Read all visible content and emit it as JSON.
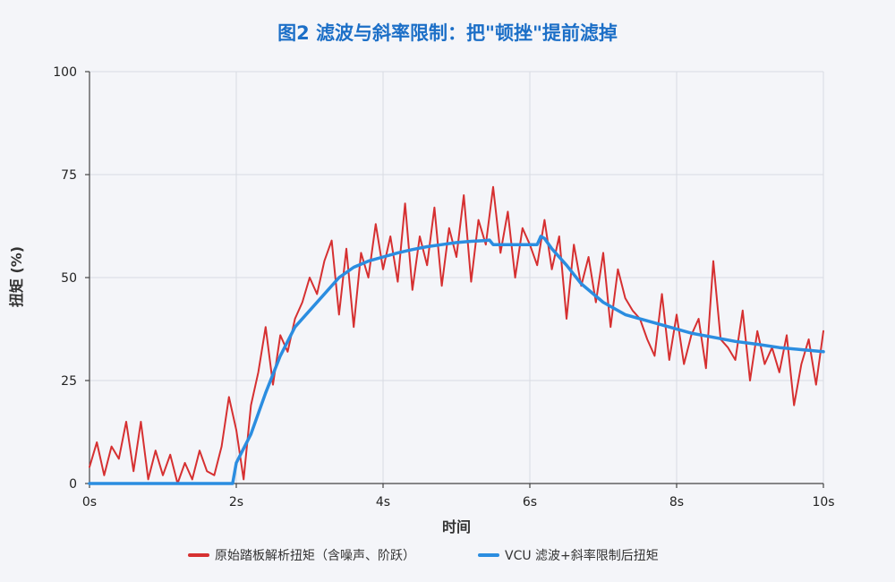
{
  "chart_data": {
    "type": "line",
    "title": "图2 滤波与斜率限制：把\"顿挫\"提前滤掉",
    "xlabel": "时间",
    "ylabel": "扭矩 (%)",
    "xlim": [
      0,
      10
    ],
    "ylim": [
      0,
      100
    ],
    "x_ticks": [
      0,
      2,
      4,
      6,
      8,
      10
    ],
    "x_tick_labels": [
      "0s",
      "2s",
      "4s",
      "6s",
      "8s",
      "10s"
    ],
    "y_ticks": [
      0,
      25,
      50,
      75,
      100
    ],
    "y_tick_labels": [
      "0",
      "25",
      "50",
      "75",
      "100"
    ],
    "grid": true,
    "legend_position": "bottom-center",
    "series": [
      {
        "name": "原始踏板解析扭矩（含噪声、阶跃）",
        "color": "#d63031",
        "x": [
          0,
          0.1,
          0.2,
          0.3,
          0.4,
          0.5,
          0.6,
          0.7,
          0.8,
          0.9,
          1.0,
          1.1,
          1.2,
          1.3,
          1.4,
          1.5,
          1.6,
          1.7,
          1.8,
          1.9,
          2.0,
          2.1,
          2.2,
          2.3,
          2.4,
          2.5,
          2.6,
          2.7,
          2.8,
          2.9,
          3.0,
          3.1,
          3.2,
          3.3,
          3.4,
          3.5,
          3.6,
          3.7,
          3.8,
          3.9,
          4.0,
          4.1,
          4.2,
          4.3,
          4.4,
          4.5,
          4.6,
          4.7,
          4.8,
          4.9,
          5.0,
          5.1,
          5.2,
          5.3,
          5.4,
          5.5,
          5.6,
          5.7,
          5.8,
          5.9,
          6.0,
          6.1,
          6.2,
          6.3,
          6.4,
          6.5,
          6.6,
          6.7,
          6.8,
          6.9,
          7.0,
          7.1,
          7.2,
          7.3,
          7.4,
          7.5,
          7.6,
          7.7,
          7.8,
          7.9,
          8.0,
          8.1,
          8.2,
          8.3,
          8.4,
          8.5,
          8.6,
          8.7,
          8.8,
          8.9,
          9.0,
          9.1,
          9.2,
          9.3,
          9.4,
          9.5,
          9.6,
          9.7,
          9.8,
          9.9,
          10.0
        ],
        "values": [
          4,
          10,
          2,
          9,
          6,
          15,
          3,
          15,
          1,
          8,
          2,
          7,
          0,
          5,
          1,
          8,
          3,
          2,
          9,
          21,
          13,
          1,
          19,
          27,
          38,
          24,
          36,
          32,
          40,
          44,
          50,
          46,
          54,
          59,
          41,
          57,
          38,
          56,
          50,
          63,
          52,
          60,
          49,
          68,
          47,
          60,
          53,
          67,
          48,
          62,
          55,
          70,
          49,
          64,
          58,
          72,
          56,
          66,
          50,
          62,
          58,
          53,
          64,
          52,
          60,
          40,
          58,
          48,
          55,
          44,
          56,
          38,
          52,
          45,
          42,
          40,
          35,
          31,
          46,
          30,
          41,
          29,
          36,
          40,
          28,
          54,
          35,
          33,
          30,
          42,
          25,
          37,
          29,
          33,
          27,
          36,
          19,
          29,
          35,
          24,
          37
        ],
        "line_width": 2
      },
      {
        "name": "VCU 滤波+斜率限制后扭矩",
        "color": "#2b8de0",
        "x": [
          0,
          1.95,
          2.0,
          2.2,
          2.4,
          2.6,
          2.8,
          3.0,
          3.2,
          3.4,
          3.6,
          3.8,
          4.0,
          4.2,
          4.4,
          4.6,
          4.8,
          5.0,
          5.2,
          5.4,
          5.45,
          5.5,
          5.8,
          6.1,
          6.15,
          6.2,
          6.3,
          6.5,
          6.7,
          7.0,
          7.3,
          7.6,
          7.9,
          8.2,
          8.5,
          8.8,
          9.1,
          9.4,
          9.7,
          10.0
        ],
        "values": [
          0,
          0,
          5,
          12,
          22,
          31,
          38,
          42,
          46,
          50,
          52.5,
          54,
          55,
          56,
          56.8,
          57.5,
          58,
          58.5,
          58.8,
          59,
          59.1,
          58,
          58,
          58,
          60,
          59.5,
          57,
          53,
          48.5,
          44,
          41,
          39.5,
          38,
          36.5,
          35.5,
          34.5,
          33.8,
          33,
          32.5,
          32
        ],
        "line_width": 3.5
      }
    ]
  }
}
